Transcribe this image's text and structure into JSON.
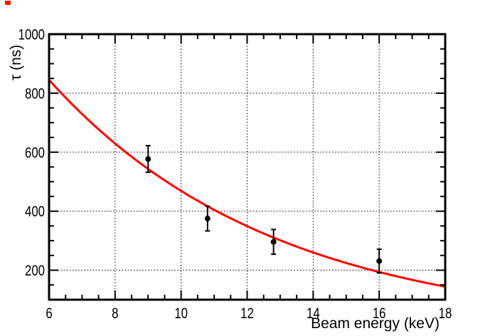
{
  "decorations": {
    "corner_marker_color": "#f61a0e"
  },
  "chart_data": {
    "type": "scatter",
    "title": "",
    "xlabel": "Beam energy (keV)",
    "ylabel": "τ (ns)",
    "xlim": [
      6,
      18
    ],
    "ylim": [
      100,
      1000
    ],
    "x_major_ticks": [
      6,
      8,
      10,
      12,
      14,
      16,
      18
    ],
    "x_minor_tick_step": 0.5,
    "y_major_ticks": [
      200,
      400,
      600,
      800,
      1000
    ],
    "y_minor_tick_step": 50,
    "grid": "dotted-black-at-major-ticks",
    "legend_position": "none",
    "axis_color": "#000000",
    "grid_color": "#000000",
    "background": "#ffffff",
    "points": [
      {
        "x": 9.0,
        "y": 577,
        "yerr": 45
      },
      {
        "x": 10.8,
        "y": 375,
        "yerr": 42
      },
      {
        "x": 12.8,
        "y": 296,
        "yerr": 42
      },
      {
        "x": 16.0,
        "y": 231,
        "yerr": 40
      }
    ],
    "point_style": {
      "marker": "filled-circle",
      "color": "#000000",
      "error_bar_caps": true
    },
    "fit_curve": {
      "model": "exponential-decay",
      "formula": "tau(E) = 845 * exp(-(E - 6) / 6.79)",
      "reference_energy_keV": 6,
      "tau_at_reference_ns": 845,
      "decay_constant_keV": 6.79,
      "color": "#ff0000",
      "samples_E_keV_tau_ns": [
        [
          6,
          845
        ],
        [
          7,
          730
        ],
        [
          8,
          630
        ],
        [
          9,
          544
        ],
        [
          10,
          469
        ],
        [
          11,
          405
        ],
        [
          12,
          350
        ],
        [
          13,
          302
        ],
        [
          14,
          261
        ],
        [
          15,
          225
        ],
        [
          16,
          195
        ],
        [
          17,
          168
        ],
        [
          18,
          144
        ]
      ]
    }
  }
}
